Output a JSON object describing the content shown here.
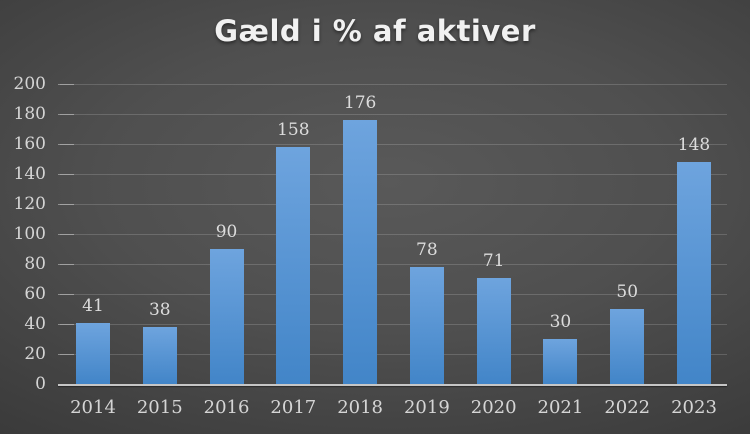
{
  "chart_data": {
    "type": "bar",
    "title": "Gæld i % af aktiver",
    "categories": [
      "2014",
      "2015",
      "2016",
      "2017",
      "2018",
      "2019",
      "2020",
      "2021",
      "2022",
      "2023"
    ],
    "values": [
      41,
      38,
      90,
      158,
      176,
      78,
      71,
      30,
      50,
      148
    ],
    "xlabel": "",
    "ylabel": "",
    "ylim": [
      0,
      200
    ],
    "ytick_step": 20,
    "grid": true,
    "data_labels_shown": true,
    "legend_position": "none"
  },
  "colors": {
    "bar_top": "#6ea4de",
    "bar_bottom": "#4285c8",
    "title_text": "#f1f1f1",
    "axis_text": "#d5d5d5",
    "data_label_text": "#dcdcdc",
    "axis_line": "#c6c6c6",
    "gridline": "rgba(255,255,255,0.16)",
    "tick_mark": "rgba(255,255,255,0.38)",
    "background_center": "#595959",
    "background_edge": "#222222"
  }
}
